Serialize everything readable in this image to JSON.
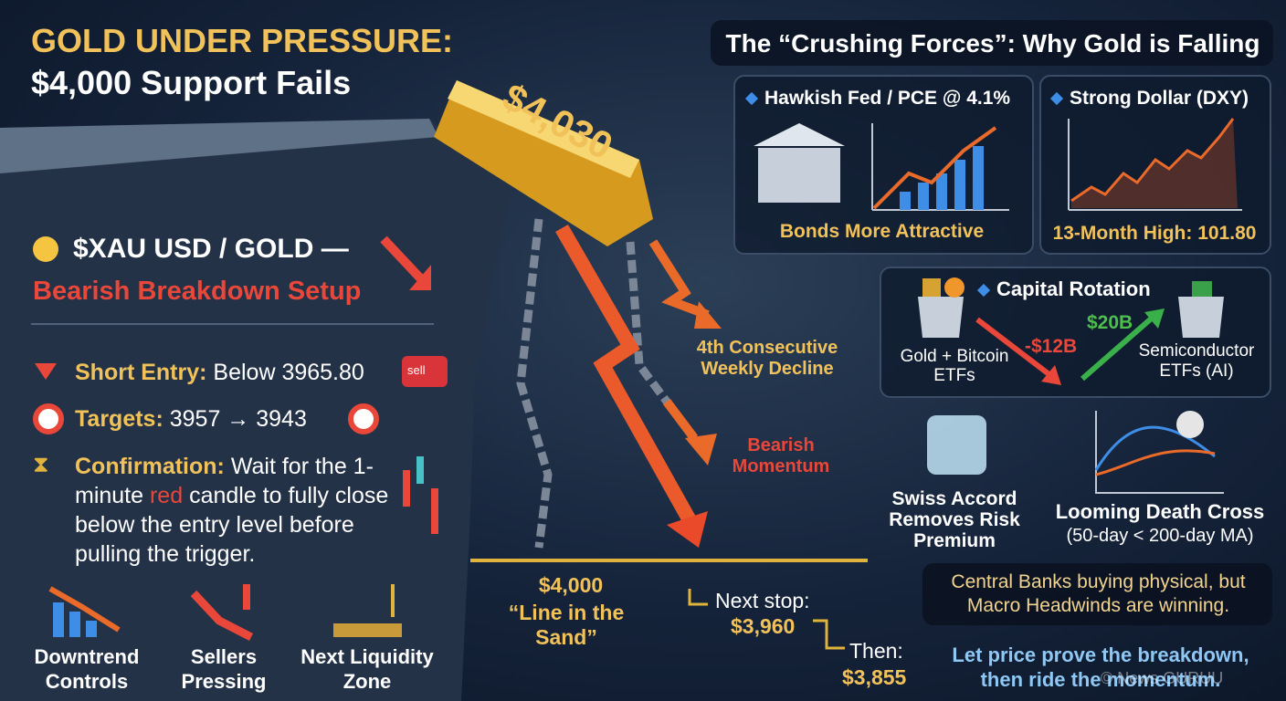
{
  "header": {
    "title": "GOLD UNDER PRESSURE:",
    "subtitle": "$4,000 Support Fails"
  },
  "price_tag": "$4,030",
  "setup": {
    "ticker": "$XAU USD / GOLD —",
    "label": "Bearish Breakdown Setup",
    "entry": {
      "label": "Short Entry:",
      "text": "Below 3965.80",
      "button": "sell"
    },
    "targets": {
      "label": "Targets:",
      "text": "3957 → 3943"
    },
    "confirmation": {
      "label": "Confirmation:",
      "text_parts": [
        "Wait for the 1-minute ",
        "red",
        " candle to fully close below the entry level before pulling the trigger."
      ]
    }
  },
  "icons": [
    "Downtrend Controls",
    "Sellers Pressing",
    "Next Liquidity Zone"
  ],
  "center": {
    "decline": "4th Consecutive Weekly Decline",
    "momentum": "Bearish Momentum",
    "support_price": "$4,000",
    "support_label": "“Line in the Sand”",
    "next_label": "Next stop:",
    "next_price": "$3,960",
    "then_label": "Then:",
    "then_price": "$3,855"
  },
  "forces": {
    "title": "The “Crushing Forces”: Why Gold is Falling",
    "fed": {
      "title": "Hawkish Fed / PCE @ 4.1%",
      "caption": "Bonds More Attractive"
    },
    "dollar": {
      "title": "Strong Dollar (DXY)",
      "caption": "13-Month High: 101.80"
    },
    "rotation": {
      "title": "Capital Rotation",
      "from": "Gold + Bitcoin ETFs",
      "outflow": "-$12B",
      "inflow": "$20B",
      "to": "Semiconductor ETFs (AI)"
    },
    "swiss": "Swiss Accord Removes Risk Premium",
    "death_cross": {
      "title": "Looming Death Cross",
      "note": "(50-day < 200-day MA)"
    },
    "central_banks": "Central Banks buying physical, but Macro Headwinds are winning.",
    "closing": "Let price prove the breakdown, then ride the momentum."
  },
  "watermark": "© News GURUU"
}
